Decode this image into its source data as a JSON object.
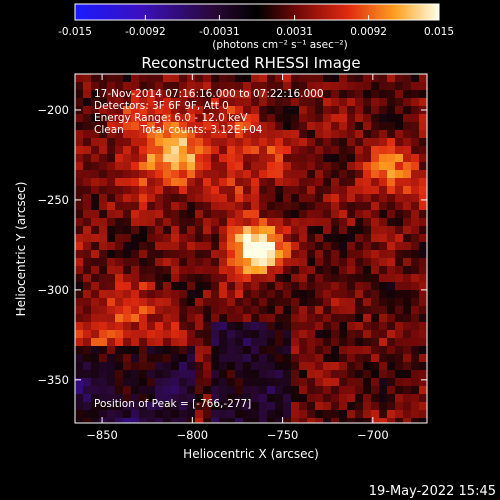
{
  "colorbar": {
    "tick_labels": [
      "-0.015",
      "-0.0092",
      "-0.0031",
      "0.0031",
      "0.0092",
      "0.015"
    ],
    "unit_label": "(photons cm⁻² s⁻¹ asec⁻²)",
    "range": [
      -0.015,
      0.015
    ],
    "colormap": "blue-purple-red-orange-yellow-white"
  },
  "title": "Reconstructed RHESSI Image",
  "annotations": [
    "17-Nov-2014 07:16:16.000 to 07:22:16.000",
    "Detectors: 3F 6F 9F, Att 0",
    "Energy Range: 6.0 - 12.0 keV",
    "Clean     Total counts: 3.12E+04"
  ],
  "peak_label": "Position of Peak = [-766,-277]",
  "footer_timestamp": "19-May-2022 15:45",
  "chart_data": {
    "type": "heatmap",
    "xlabel": "Heliocentric X (arcsec)",
    "ylabel": "Heliocentric Y (arcsec)",
    "xlim": [
      -865,
      -670
    ],
    "ylim": [
      -374,
      -180
    ],
    "x_ticks": [
      -850,
      -800,
      -750,
      -700
    ],
    "y_ticks": [
      -200,
      -250,
      -300,
      -350
    ],
    "peak": {
      "x": -766,
      "y": -277
    },
    "features": [
      {
        "x": -766,
        "y": -277,
        "intensity": 1.0,
        "sigma": 10
      },
      {
        "x": -815,
        "y": -222,
        "intensity": 0.55,
        "sigma": 18
      },
      {
        "x": -770,
        "y": -220,
        "intensity": 0.45,
        "sigma": 16
      },
      {
        "x": -690,
        "y": -236,
        "intensity": 0.45,
        "sigma": 12
      },
      {
        "x": -838,
        "y": -322,
        "intensity": 0.35,
        "sigma": 18
      }
    ]
  }
}
